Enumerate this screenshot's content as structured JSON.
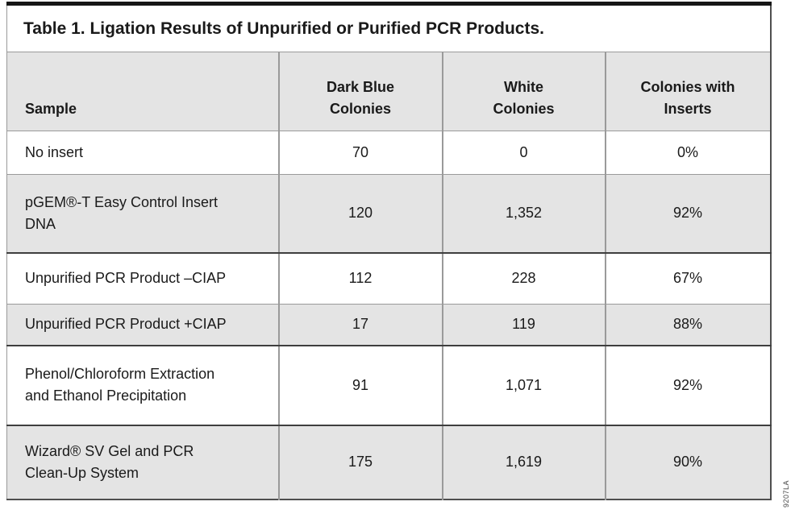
{
  "title": "Table 1. Ligation Results of Unpurified or Purified PCR Products.",
  "footer_code": "9207LA",
  "colors": {
    "header_bg": "#e4e4e4",
    "row_bg": "#ffffff",
    "line_light": "#9a9a9a",
    "line_dark": "#3e3e3e",
    "outer_border": "#4f4f4f",
    "top_bar": "#161616",
    "text": "#1a1a1a"
  },
  "table": {
    "headers": [
      {
        "lines": [
          "Sample",
          ""
        ]
      },
      {
        "lines": [
          "Dark Blue",
          "Colonies"
        ]
      },
      {
        "lines": [
          "White",
          "Colonies"
        ]
      },
      {
        "lines": [
          "Colonies with",
          "Inserts"
        ]
      }
    ],
    "rows": [
      {
        "sample_lines": [
          "No insert",
          ""
        ],
        "dark_blue": "70",
        "white": "0",
        "inserts_pct": "0%"
      },
      {
        "sample_lines": [
          "pGEM®-T Easy Control Insert",
          "DNA"
        ],
        "dark_blue": "120",
        "white": "1,352",
        "inserts_pct": "92%"
      },
      {
        "sample_lines": [
          "Unpurified PCR Product –CIAP",
          ""
        ],
        "dark_blue": "112",
        "white": "228",
        "inserts_pct": "67%"
      },
      {
        "sample_lines": [
          "Unpurified PCR Product +CIAP",
          ""
        ],
        "dark_blue": "17",
        "white": "119",
        "inserts_pct": "88%"
      },
      {
        "sample_lines": [
          "Phenol/Chloroform Extraction",
          "and Ethanol Precipitation"
        ],
        "dark_blue": "91",
        "white": "1,071",
        "inserts_pct": "92%"
      },
      {
        "sample_lines": [
          "Wizard® SV Gel and PCR",
          "Clean-Up System"
        ],
        "dark_blue": "175",
        "white": "1,619",
        "inserts_pct": "90%"
      }
    ]
  }
}
